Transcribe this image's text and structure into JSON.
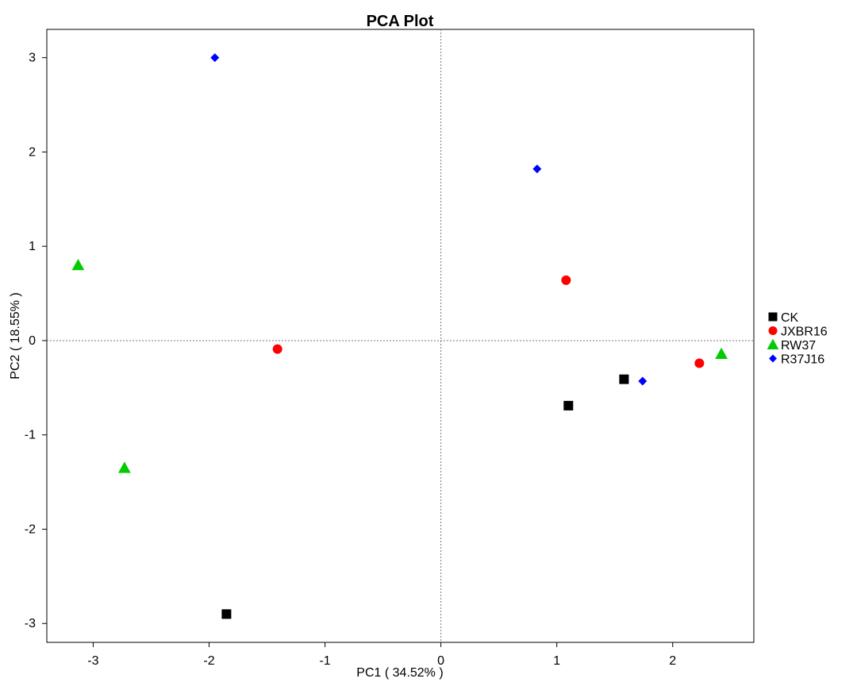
{
  "chart_data": {
    "type": "scatter",
    "title": "PCA Plot",
    "xlabel": "PC1 ( 34.52% )",
    "ylabel": "PC2 ( 18.55% )",
    "xlim": [
      -3.4,
      2.7
    ],
    "ylim": [
      -3.2,
      3.3
    ],
    "xticks": [
      -3,
      -2,
      -1,
      0,
      1,
      2
    ],
    "yticks": [
      -3,
      -2,
      -1,
      0,
      1,
      2,
      3
    ],
    "x_tick_labels": [
      "-3",
      "-2",
      "-1",
      "0",
      "1",
      "2"
    ],
    "y_tick_labels": [
      "-3",
      "-2",
      "-1",
      "0",
      "1",
      "2",
      "3"
    ],
    "reference_lines": {
      "x": 0,
      "y": 0,
      "style": "dotted"
    },
    "grid": false,
    "legend_position": "right",
    "series": [
      {
        "name": "CK",
        "marker": "square",
        "color": "#000000",
        "points": [
          {
            "x": -1.85,
            "y": -2.9
          },
          {
            "x": 1.1,
            "y": -0.69
          },
          {
            "x": 1.58,
            "y": -0.41
          }
        ]
      },
      {
        "name": "JXBR16",
        "marker": "circle",
        "color": "#ff0000",
        "points": [
          {
            "x": -1.41,
            "y": -0.09
          },
          {
            "x": 1.08,
            "y": 0.64
          },
          {
            "x": 2.23,
            "y": -0.24
          }
        ]
      },
      {
        "name": "RW37",
        "marker": "triangle",
        "color": "#00cc00",
        "points": [
          {
            "x": -3.13,
            "y": 0.8
          },
          {
            "x": -2.73,
            "y": -1.35
          },
          {
            "x": 2.42,
            "y": -0.14
          }
        ]
      },
      {
        "name": "R37J16",
        "marker": "diamond",
        "color": "#0000ff",
        "points": [
          {
            "x": -1.95,
            "y": 3.0
          },
          {
            "x": 0.83,
            "y": 1.82
          },
          {
            "x": 1.74,
            "y": -0.43
          }
        ]
      }
    ]
  }
}
